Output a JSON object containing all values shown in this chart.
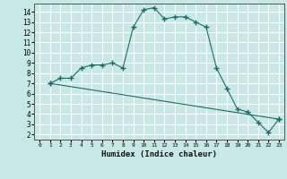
{
  "xlabel": "Humidex (Indice chaleur)",
  "bg_color": "#c8e8e8",
  "grid_color": "#ffffff",
  "line_color": "#1a6b6b",
  "xlim": [
    -0.5,
    23.5
  ],
  "ylim": [
    1.5,
    14.8
  ],
  "x_ticks": [
    0,
    1,
    2,
    3,
    4,
    5,
    6,
    7,
    8,
    9,
    10,
    11,
    12,
    13,
    14,
    15,
    16,
    17,
    18,
    19,
    20,
    21,
    22,
    23
  ],
  "y_ticks": [
    2,
    3,
    4,
    5,
    6,
    7,
    8,
    9,
    10,
    11,
    12,
    13,
    14
  ],
  "curve1_x": [
    1,
    2,
    3,
    4,
    5,
    6,
    7,
    8,
    9,
    10,
    11,
    12,
    13,
    14,
    15,
    16,
    17,
    18,
    19,
    20,
    21,
    22,
    23
  ],
  "curve1_y": [
    7.0,
    7.5,
    7.5,
    8.5,
    8.8,
    8.8,
    9.0,
    8.5,
    12.5,
    14.2,
    14.4,
    13.3,
    13.5,
    13.5,
    13.0,
    12.5,
    8.5,
    6.5,
    4.5,
    4.2,
    3.2,
    2.2,
    3.5
  ],
  "curve2_x": [
    1,
    23
  ],
  "curve2_y": [
    7.0,
    3.5
  ]
}
